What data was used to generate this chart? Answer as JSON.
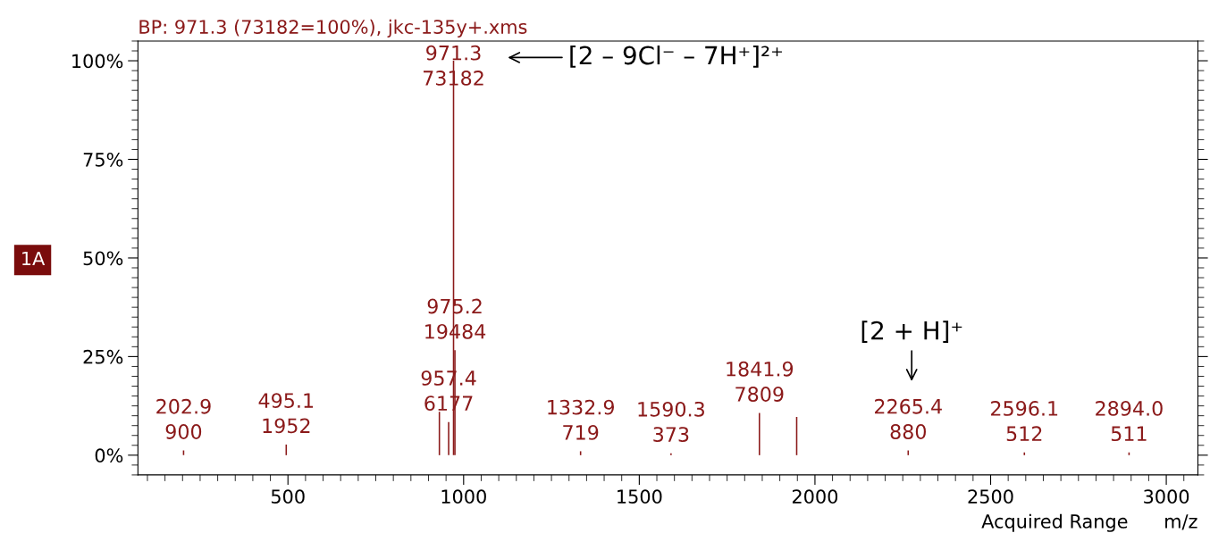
{
  "chart_data": {
    "type": "bar",
    "title": "BP: 971.3 (73182=100%), jkc-135y+.xms",
    "xlabel": "m/z",
    "x": [
      202.9,
      495.1,
      931,
      957.4,
      971.3,
      975.2,
      1332.9,
      1590.3,
      1841.9,
      1948,
      2265.4,
      2596.1,
      2894.0
    ],
    "values": [
      1.2,
      2.7,
      11,
      8.4,
      100,
      26.6,
      1,
      0.5,
      10.7,
      9.7,
      1.2,
      0.7,
      0.7
    ],
    "color": "#8b1a1a",
    "xlim": [
      73,
      3090
    ],
    "xticks": [
      500,
      1000,
      1500,
      2000,
      2500,
      3000
    ],
    "ylim": [
      -5,
      105
    ],
    "yticks": [
      {
        "value": 0,
        "label": "0%"
      },
      {
        "value": 25,
        "label": "25%"
      },
      {
        "value": 50,
        "label": "50%"
      },
      {
        "value": 75,
        "label": "75%"
      },
      {
        "value": 100,
        "label": "100%"
      }
    ],
    "grid": false,
    "annotations": [
      {
        "text": "202.9\n900",
        "x": 202.9,
        "y": 1.2
      },
      {
        "text": "495.1\n1952",
        "x": 495.1,
        "y": 2.7
      },
      {
        "text": "957.4\n6177",
        "x": 957.4,
        "y": 8.4
      },
      {
        "text": "971.3\n73182",
        "x": 971.3,
        "y": 100
      },
      {
        "text": "975.2\n19484",
        "x": 975.2,
        "y": 26.6
      },
      {
        "text": "1332.9\n719",
        "x": 1332.9,
        "y": 1
      },
      {
        "text": "1590.3\n373",
        "x": 1590.3,
        "y": 0.5
      },
      {
        "text": "1841.9\n7809",
        "x": 1841.9,
        "y": 10.7
      },
      {
        "text": "2265.4\n880",
        "x": 2265.4,
        "y": 1.2
      },
      {
        "text": "2596.1\n512",
        "x": 2596.1,
        "y": 0.7
      },
      {
        "text": "2894.0\n511",
        "x": 2894.0,
        "y": 0.7
      },
      "[2 – 9Cl⁻ – 7H⁺]²⁺",
      "[2 + H]⁺",
      "1A",
      "Acquired Range"
    ]
  }
}
